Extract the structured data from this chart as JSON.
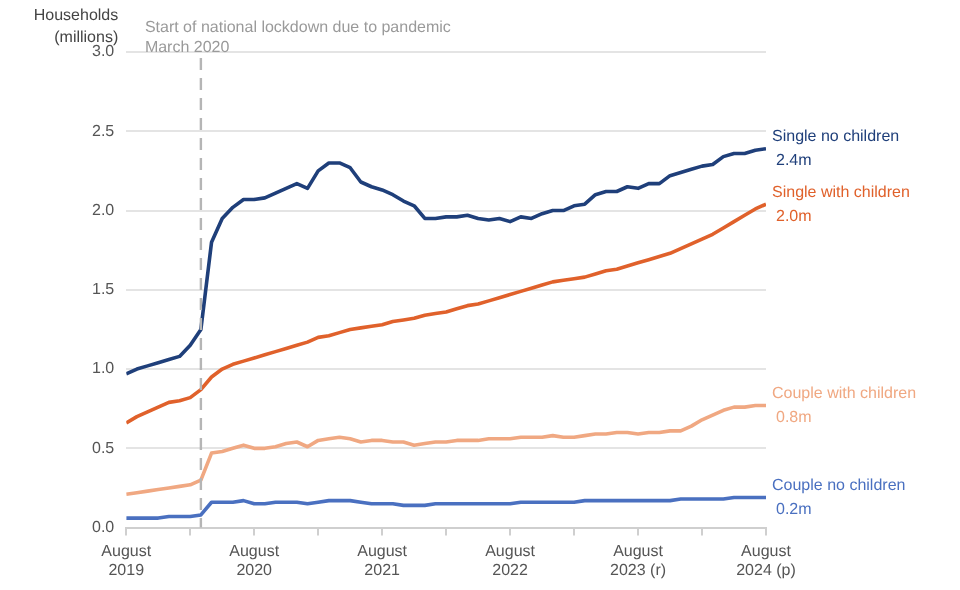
{
  "chart_data": {
    "type": "line",
    "ylabel": "Households (millions)",
    "x": [
      "2019-08",
      "2019-09",
      "2019-10",
      "2019-11",
      "2019-12",
      "2020-01",
      "2020-02",
      "2020-03",
      "2020-04",
      "2020-05",
      "2020-06",
      "2020-07",
      "2020-08",
      "2020-09",
      "2020-10",
      "2020-11",
      "2020-12",
      "2021-01",
      "2021-02",
      "2021-03",
      "2021-04",
      "2021-05",
      "2021-06",
      "2021-07",
      "2021-08",
      "2021-09",
      "2021-10",
      "2021-11",
      "2021-12",
      "2022-01",
      "2022-02",
      "2022-03",
      "2022-04",
      "2022-05",
      "2022-06",
      "2022-07",
      "2022-08",
      "2022-09",
      "2022-10",
      "2022-11",
      "2022-12",
      "2023-01",
      "2023-02",
      "2023-03",
      "2023-04",
      "2023-05",
      "2023-06",
      "2023-07",
      "2023-08",
      "2023-09",
      "2023-10",
      "2023-11",
      "2023-12",
      "2024-01",
      "2024-02",
      "2024-03",
      "2024-04",
      "2024-05",
      "2024-06",
      "2024-07",
      "2024-08"
    ],
    "series": [
      {
        "name": "Single no children",
        "color": "#1f3f7a",
        "values": [
          0.97,
          1.0,
          1.02,
          1.04,
          1.06,
          1.08,
          1.15,
          1.25,
          1.8,
          1.95,
          2.02,
          2.07,
          2.07,
          2.08,
          2.11,
          2.14,
          2.17,
          2.14,
          2.25,
          2.3,
          2.3,
          2.27,
          2.18,
          2.15,
          2.13,
          2.1,
          2.06,
          2.03,
          1.95,
          1.95,
          1.96,
          1.96,
          1.97,
          1.95,
          1.94,
          1.95,
          1.93,
          1.96,
          1.95,
          1.98,
          2.0,
          2.0,
          2.03,
          2.04,
          2.1,
          2.12,
          2.12,
          2.15,
          2.14,
          2.17,
          2.17,
          2.22,
          2.24,
          2.26,
          2.28,
          2.29,
          2.34,
          2.36,
          2.36,
          2.38,
          2.39
        ],
        "value_labels": [
          null,
          null,
          null,
          null,
          null,
          null,
          null,
          null,
          null,
          null,
          null,
          null,
          null,
          null,
          null,
          null,
          null,
          null,
          null,
          null,
          null,
          null,
          null,
          null,
          null,
          null,
          null,
          null,
          null,
          null,
          null,
          null,
          null,
          null,
          null,
          null,
          null,
          null,
          null,
          null,
          null,
          null,
          null,
          null,
          null,
          null,
          null,
          null,
          null,
          null,
          null,
          null,
          null,
          null,
          null,
          null,
          null,
          null,
          null,
          null,
          "2.4m"
        ]
      },
      {
        "name": "Single with children",
        "color": "#e0612b",
        "values": [
          0.66,
          0.7,
          0.73,
          0.76,
          0.79,
          0.8,
          0.82,
          0.87,
          0.95,
          1.0,
          1.03,
          1.05,
          1.07,
          1.09,
          1.11,
          1.13,
          1.15,
          1.17,
          1.2,
          1.21,
          1.23,
          1.25,
          1.26,
          1.27,
          1.28,
          1.3,
          1.31,
          1.32,
          1.34,
          1.35,
          1.36,
          1.38,
          1.4,
          1.41,
          1.43,
          1.45,
          1.47,
          1.49,
          1.51,
          1.53,
          1.55,
          1.56,
          1.57,
          1.58,
          1.6,
          1.62,
          1.63,
          1.65,
          1.67,
          1.69,
          1.71,
          1.73,
          1.76,
          1.79,
          1.82,
          1.85,
          1.89,
          1.93,
          1.97,
          2.01,
          2.04
        ],
        "value_labels": [
          null,
          null,
          null,
          null,
          null,
          null,
          null,
          null,
          null,
          null,
          null,
          null,
          null,
          null,
          null,
          null,
          null,
          null,
          null,
          null,
          null,
          null,
          null,
          null,
          null,
          null,
          null,
          null,
          null,
          null,
          null,
          null,
          null,
          null,
          null,
          null,
          null,
          null,
          null,
          null,
          null,
          null,
          null,
          null,
          null,
          null,
          null,
          null,
          null,
          null,
          null,
          null,
          null,
          null,
          null,
          null,
          null,
          null,
          null,
          null,
          "2.0m"
        ]
      },
      {
        "name": "Couple with children",
        "color": "#f0a882",
        "values": [
          0.21,
          0.22,
          0.23,
          0.24,
          0.25,
          0.26,
          0.27,
          0.3,
          0.47,
          0.48,
          0.5,
          0.52,
          0.5,
          0.5,
          0.51,
          0.53,
          0.54,
          0.51,
          0.55,
          0.56,
          0.57,
          0.56,
          0.54,
          0.55,
          0.55,
          0.54,
          0.54,
          0.52,
          0.53,
          0.54,
          0.54,
          0.55,
          0.55,
          0.55,
          0.56,
          0.56,
          0.56,
          0.57,
          0.57,
          0.57,
          0.58,
          0.57,
          0.57,
          0.58,
          0.59,
          0.59,
          0.6,
          0.6,
          0.59,
          0.6,
          0.6,
          0.61,
          0.61,
          0.64,
          0.68,
          0.71,
          0.74,
          0.76,
          0.76,
          0.77,
          0.77
        ],
        "value_labels": [
          null,
          null,
          null,
          null,
          null,
          null,
          null,
          null,
          null,
          null,
          null,
          null,
          null,
          null,
          null,
          null,
          null,
          null,
          null,
          null,
          null,
          null,
          null,
          null,
          null,
          null,
          null,
          null,
          null,
          null,
          null,
          null,
          null,
          null,
          null,
          null,
          null,
          null,
          null,
          null,
          null,
          null,
          null,
          null,
          null,
          null,
          null,
          null,
          null,
          null,
          null,
          null,
          null,
          null,
          null,
          null,
          null,
          null,
          null,
          null,
          "0.8m"
        ]
      },
      {
        "name": "Couple no children",
        "color": "#4a70c0",
        "values": [
          0.06,
          0.06,
          0.06,
          0.06,
          0.07,
          0.07,
          0.07,
          0.08,
          0.16,
          0.16,
          0.16,
          0.17,
          0.15,
          0.15,
          0.16,
          0.16,
          0.16,
          0.15,
          0.16,
          0.17,
          0.17,
          0.17,
          0.16,
          0.15,
          0.15,
          0.15,
          0.14,
          0.14,
          0.14,
          0.15,
          0.15,
          0.15,
          0.15,
          0.15,
          0.15,
          0.15,
          0.15,
          0.16,
          0.16,
          0.16,
          0.16,
          0.16,
          0.16,
          0.17,
          0.17,
          0.17,
          0.17,
          0.17,
          0.17,
          0.17,
          0.17,
          0.17,
          0.18,
          0.18,
          0.18,
          0.18,
          0.18,
          0.19,
          0.19,
          0.19,
          0.19
        ],
        "value_labels": [
          null,
          null,
          null,
          null,
          null,
          null,
          null,
          null,
          null,
          null,
          null,
          null,
          null,
          null,
          null,
          null,
          null,
          null,
          null,
          null,
          null,
          null,
          null,
          null,
          null,
          null,
          null,
          null,
          null,
          null,
          null,
          null,
          null,
          null,
          null,
          null,
          null,
          null,
          null,
          null,
          null,
          null,
          null,
          null,
          null,
          null,
          null,
          null,
          null,
          null,
          null,
          null,
          null,
          null,
          null,
          null,
          null,
          null,
          null,
          null,
          "0.2m"
        ]
      }
    ],
    "xlim": [
      "2019-08",
      "2024-08"
    ],
    "xticks": [
      {
        "value": "2019-08",
        "label": "August 2019"
      },
      {
        "value": "2020-02",
        "label": null
      },
      {
        "value": "2020-08",
        "label": "August 2020"
      },
      {
        "value": "2021-02",
        "label": null
      },
      {
        "value": "2021-08",
        "label": "August 2021"
      },
      {
        "value": "2022-02",
        "label": null
      },
      {
        "value": "2022-08",
        "label": "August 2022"
      },
      {
        "value": "2023-02",
        "label": null
      },
      {
        "value": "2023-08",
        "label": "August 2023 (r)"
      },
      {
        "value": "2024-02",
        "label": null
      },
      {
        "value": "2024-08",
        "label": "August 2024 (p)"
      }
    ],
    "ylim": [
      0,
      3
    ],
    "yticks": [
      {
        "value": 0,
        "label": "0.0"
      },
      {
        "value": 0.5,
        "label": "0.5"
      },
      {
        "value": 1,
        "label": "1.0"
      },
      {
        "value": 1.5,
        "label": "1.5"
      },
      {
        "value": 2,
        "label": "2.0"
      },
      {
        "value": 2.5,
        "label": "2.5"
      },
      {
        "value": 3,
        "label": "3.0"
      }
    ],
    "ref_lines": [
      {
        "axis": "x",
        "value": "2020-03",
        "label": "Start of national lockdown due to pandemic March 2020",
        "color": "#b5b5b5",
        "line_style": "dashed"
      }
    ],
    "grid": "y",
    "legend": false,
    "marker": "none",
    "line_style": "solid"
  }
}
